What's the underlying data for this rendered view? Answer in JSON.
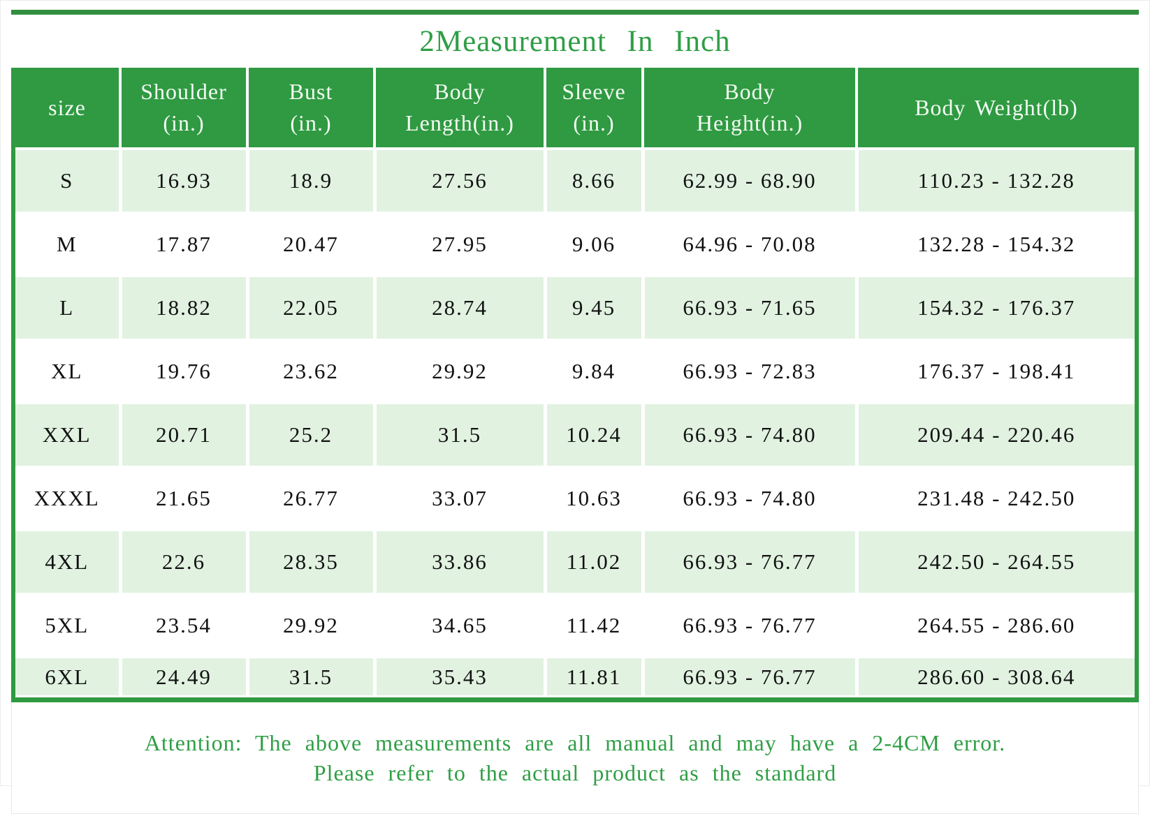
{
  "title": "2Measurement In Inch",
  "chart_data": {
    "type": "table",
    "title": "2Measurement In Inch",
    "columns": [
      {
        "label": "size"
      },
      {
        "label": "Shoulder\n(in.)"
      },
      {
        "label": "Bust\n(in.)"
      },
      {
        "label": "Body\nLength(in.)"
      },
      {
        "label": "Sleeve\n(in.)"
      },
      {
        "label": "Body\nHeight(in.)"
      },
      {
        "label": "Body Weight(lb)"
      }
    ],
    "rows": [
      {
        "shaded": true,
        "compact": false,
        "cells": [
          "S",
          "16.93",
          "18.9",
          "27.56",
          "8.66",
          "62.99 - 68.90",
          "110.23 - 132.28"
        ]
      },
      {
        "shaded": false,
        "compact": false,
        "cells": [
          "M",
          "17.87",
          "20.47",
          "27.95",
          "9.06",
          "64.96 - 70.08",
          "132.28 - 154.32"
        ]
      },
      {
        "shaded": true,
        "compact": false,
        "cells": [
          "L",
          "18.82",
          "22.05",
          "28.74",
          "9.45",
          "66.93 - 71.65",
          "154.32 - 176.37"
        ]
      },
      {
        "shaded": false,
        "compact": false,
        "cells": [
          "XL",
          "19.76",
          "23.62",
          "29.92",
          "9.84",
          "66.93 - 72.83",
          "176.37 - 198.41"
        ]
      },
      {
        "shaded": true,
        "compact": false,
        "cells": [
          "XXL",
          "20.71",
          "25.2",
          "31.5",
          "10.24",
          "66.93 - 74.80",
          "209.44 - 220.46"
        ]
      },
      {
        "shaded": false,
        "compact": false,
        "cells": [
          "XXXL",
          "21.65",
          "26.77",
          "33.07",
          "10.63",
          "66.93 - 74.80",
          "231.48 - 242.50"
        ]
      },
      {
        "shaded": true,
        "compact": false,
        "cells": [
          "4XL",
          "22.6",
          "28.35",
          "33.86",
          "11.02",
          "66.93 - 76.77",
          "242.50 - 264.55"
        ]
      },
      {
        "shaded": false,
        "compact": false,
        "cells": [
          "5XL",
          "23.54",
          "29.92",
          "34.65",
          "11.42",
          "66.93 - 76.77",
          "264.55 - 286.60"
        ]
      },
      {
        "shaded": true,
        "compact": true,
        "cells": [
          "6XL",
          "24.49",
          "31.5",
          "35.43",
          "11.81",
          "66.93 - 76.77",
          "286.60 - 308.64"
        ]
      }
    ],
    "layout": {
      "grid": "white gutters between cells",
      "legend": "none"
    }
  },
  "footer": {
    "line1": "Attention: The above measurements are all manual and may have a 2-4CM error.",
    "line2": "Please refer to the actual product as the standard"
  },
  "colors": {
    "header_green": "#2f9a41",
    "top_bar_green": "#318f3e",
    "row_green": "#e1f2e1",
    "text_green": "#2f9e45",
    "cell_text": "#111111"
  }
}
